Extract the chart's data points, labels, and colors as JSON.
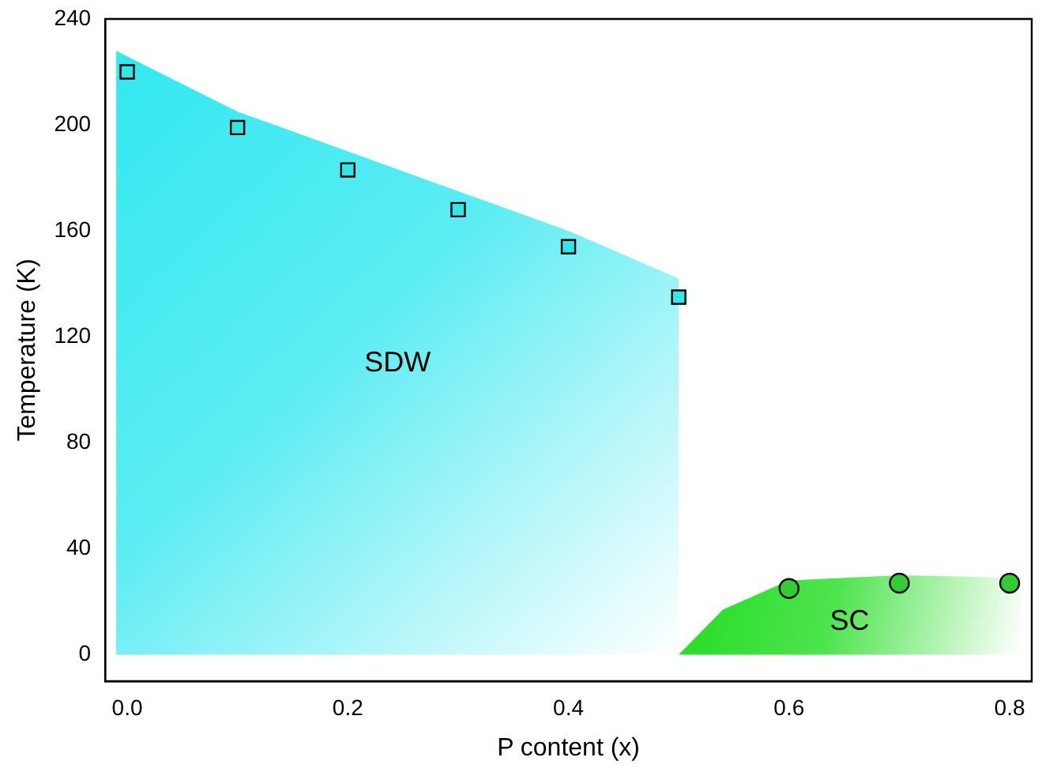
{
  "chart_data": {
    "type": "scatter",
    "xlabel": "P content (x)",
    "ylabel": "Temperature (K)",
    "xlim": [
      -0.02,
      0.82
    ],
    "ylim": [
      -10,
      240
    ],
    "xticks": [
      {
        "value": 0,
        "label": "0.0"
      },
      {
        "value": 0.2,
        "label": "0.2"
      },
      {
        "value": 0.4,
        "label": "0.4"
      },
      {
        "value": 0.6,
        "label": "0.6"
      },
      {
        "value": 0.8,
        "label": "0.8"
      }
    ],
    "yticks": [
      0,
      40,
      80,
      120,
      160,
      200,
      240
    ],
    "series": [
      {
        "type": "area",
        "color": "#33e8f0",
        "x": [
          -0.01,
          0.1,
          0.2,
          0.3,
          0.4,
          0.5
        ],
        "values": [
          228,
          205,
          190,
          175,
          160,
          142
        ]
      },
      {
        "type": "area",
        "color": "#22dd22",
        "x": [
          0.5,
          0.54,
          0.6,
          0.7,
          0.81
        ],
        "values": [
          0,
          17,
          28,
          30,
          29
        ]
      },
      {
        "type": "scatter",
        "color": "#33e6e6",
        "marker": "square",
        "x": [
          0,
          0.1,
          0.2,
          0.3,
          0.4,
          0.5
        ],
        "values": [
          220,
          199,
          183,
          168,
          154,
          135
        ]
      },
      {
        "type": "scatter",
        "color": "#33cc33",
        "marker": "circle",
        "x": [
          0.6,
          0.7,
          0.8
        ],
        "values": [
          25,
          27,
          27
        ]
      }
    ],
    "annotations": [
      "SDW",
      "SC"
    ]
  }
}
